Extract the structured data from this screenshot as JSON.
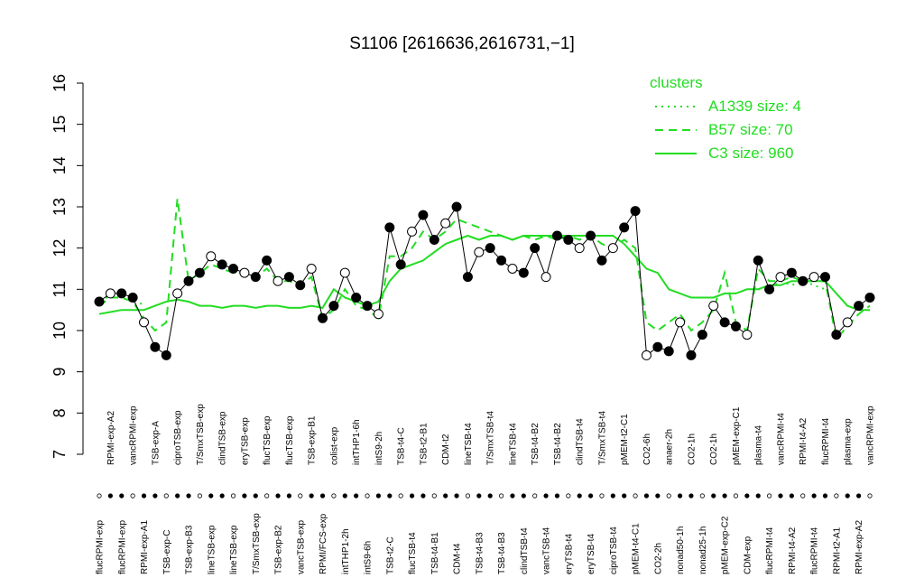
{
  "chart_data": {
    "type": "line",
    "title": "S1106 [2616636,2616731,−1]",
    "categories": [
      "flucRPMI-exp",
      "RPMI-exp-A2",
      "flucRPMI-exp",
      "vancRPMI-exp",
      "RPMI-exp-A1",
      "TSB-exp-A",
      "TSB-exp-C",
      "ciproTSB-exp",
      "TSB-exp-B3",
      "T/SmxTSB-exp",
      "lineTSB-exp",
      "clindTSB-exp",
      "lineTSB-exp",
      "eryTSB-exp",
      "T/SmxTSB-exp",
      "flucTSB-exp",
      "TSB-exp-B2",
      "flucTSB-exp",
      "vancTSB-exp",
      "TSB-exp-B1",
      "RPMI/FCS-exp",
      "colist-exp",
      "intTHP1-2h",
      "intTHP1-6h",
      "intS9-6h",
      "intS9-2h",
      "TSB-t2-C",
      "TSB-t4-C",
      "flucTSB-t4",
      "TSB-t2-B1",
      "TSB-t4-B1",
      "CDM-t2",
      "CDM-t4",
      "lineTSB-t4",
      "TSB-t4-B3",
      "T/SmxTSB-t4",
      "TSB-t4-B3",
      "lineTSB-t4",
      "clindTSB-t4",
      "TSB-t4-B2",
      "vancTSB-t4",
      "TSB-t4-B2",
      "eryTSB-t4",
      "clindTSB-t4",
      "eryTSB-t4",
      "T/SmxTSB-t4",
      "ciproTSB-t4",
      "pMEM-t2-C1",
      "pMEM-t4-C1",
      "CO2-6h",
      "CO2-2h",
      "anaer-2h",
      "nonad50-1h",
      "CO2-1h",
      "nonad25-1h",
      "CO2-1h",
      "pMEM-exp-C2",
      "pMEM-exp-C1",
      "CDM-exp",
      "plasma-t4",
      "flucRPMI-t4",
      "vancRPMI-t4",
      "RPMI-t4-A2",
      "RPMI-t4-A2",
      "flucRPMI-t4",
      "flucRPMI-t4",
      "RPMI-t2-A1",
      "plasma-exp",
      "RPMI-exp-A2",
      "vancRPMI-exp"
    ],
    "values": [
      10.7,
      10.9,
      10.9,
      10.8,
      10.2,
      9.6,
      9.4,
      10.9,
      11.2,
      11.4,
      11.8,
      11.6,
      11.5,
      11.4,
      11.3,
      11.7,
      11.2,
      11.3,
      11.1,
      11.5,
      10.3,
      10.6,
      11.4,
      10.8,
      10.6,
      10.4,
      12.5,
      11.6,
      12.4,
      12.8,
      12.2,
      12.6,
      13.0,
      11.3,
      11.9,
      12.0,
      11.7,
      11.5,
      11.4,
      12.0,
      11.3,
      12.3,
      12.2,
      12.0,
      12.3,
      11.7,
      12.0,
      12.5,
      12.9,
      9.4,
      9.6,
      9.5,
      10.2,
      9.4,
      9.9,
      10.6,
      10.2,
      10.1,
      9.9,
      11.7,
      11.0,
      11.3,
      11.4,
      11.2,
      11.3,
      11.3,
      9.9,
      10.2,
      10.6,
      10.8
    ],
    "legend_title": "clusters",
    "series": [
      {
        "name": "A1339 size: 4",
        "color": "#22dd22",
        "style": "dotted",
        "values": [
          10.8,
          10.8,
          10.9,
          10.8,
          10.6,
          null,
          null,
          null,
          null,
          null,
          null,
          null,
          null,
          null,
          null,
          null,
          null,
          null,
          null,
          null,
          null,
          null,
          null,
          null,
          null,
          null,
          null,
          null,
          null,
          null,
          null,
          null,
          null,
          null,
          null,
          null,
          null,
          null,
          null,
          null,
          null,
          null,
          null,
          null,
          null,
          null,
          null,
          null,
          null,
          null,
          null,
          null,
          null,
          null,
          null,
          null,
          null,
          null,
          null,
          11.0,
          11.0,
          11.2,
          11.1,
          11.2,
          11.1,
          11.0,
          null,
          null,
          null,
          null
        ]
      },
      {
        "name": "B57 size: 70",
        "color": "#22dd22",
        "style": "dashed",
        "values": [
          10.6,
          10.8,
          10.8,
          10.7,
          10.3,
          10.0,
          10.2,
          13.2,
          11.2,
          11.4,
          11.6,
          11.5,
          11.4,
          11.4,
          11.3,
          11.5,
          11.2,
          11.2,
          11.1,
          11.3,
          10.3,
          10.5,
          11.0,
          10.6,
          10.5,
          10.3,
          11.8,
          11.8,
          12.0,
          12.4,
          12.2,
          12.4,
          12.7,
          12.6,
          12.5,
          12.4,
          12.3,
          12.2,
          12.3,
          12.2,
          12.3,
          12.2,
          12.3,
          12.2,
          12.3,
          12.1,
          12.0,
          12.2,
          12.0,
          10.2,
          10.0,
          10.2,
          10.4,
          10.0,
          10.2,
          10.5,
          11.4,
          10.2,
          10.0,
          11.5,
          11.2,
          11.2,
          11.3,
          11.2,
          11.2,
          11.2,
          9.8,
          10.1,
          10.4,
          10.6
        ]
      },
      {
        "name": "C3 size: 960",
        "color": "#22dd22",
        "style": "solid",
        "values": [
          10.4,
          10.45,
          10.5,
          10.5,
          10.5,
          10.6,
          10.7,
          10.75,
          10.7,
          10.6,
          10.6,
          10.55,
          10.6,
          10.6,
          10.55,
          10.6,
          10.6,
          10.55,
          10.55,
          10.6,
          10.55,
          11.0,
          10.8,
          10.7,
          10.6,
          10.7,
          11.2,
          11.5,
          11.6,
          11.7,
          11.9,
          12.1,
          12.2,
          12.3,
          12.2,
          12.3,
          12.3,
          12.2,
          12.3,
          12.3,
          12.3,
          12.3,
          12.3,
          12.3,
          12.3,
          12.3,
          12.3,
          12.1,
          11.8,
          11.5,
          11.4,
          11.0,
          10.9,
          10.8,
          10.8,
          10.8,
          10.9,
          10.9,
          11.0,
          11.0,
          11.1,
          11.1,
          11.2,
          11.2,
          11.2,
          11.2,
          10.9,
          10.6,
          10.5,
          10.5
        ]
      }
    ],
    "ylim": [
      7,
      16
    ],
    "yticks": [
      7,
      8,
      9,
      10,
      11,
      12,
      13,
      14,
      15,
      16
    ]
  }
}
